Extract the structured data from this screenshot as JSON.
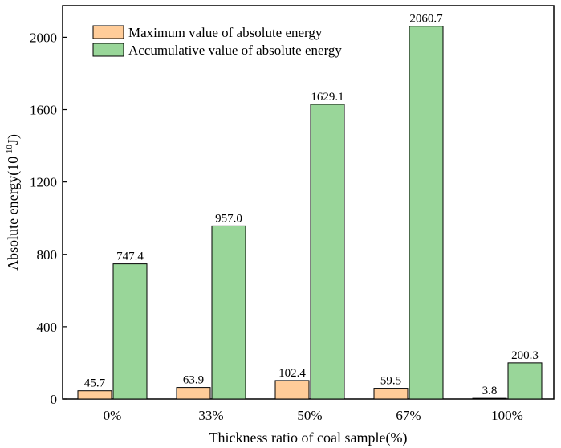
{
  "chart_data": {
    "type": "bar",
    "title": "",
    "xlabel": "Thickness ratio of coal sample(%)",
    "ylabel": {
      "main": "Absolute energy(10",
      "exponent": "-10",
      "unit": "J)"
    },
    "ylim": [
      0,
      2200
    ],
    "yticks": [
      0,
      400,
      800,
      1200,
      1600,
      2000
    ],
    "ytick_labels": [
      "0",
      "400",
      "800",
      "1200",
      "1600",
      "2000"
    ],
    "categories": [
      "0%",
      "33%",
      "50%",
      "67%",
      "100%"
    ],
    "series": [
      {
        "name": "Maximum value of absolute energy",
        "color": "#FFCC99",
        "values": [
          45.7,
          63.9,
          102.4,
          59.5,
          3.8
        ],
        "labels": [
          "45.7",
          "63.9",
          "102.4",
          "59.5",
          "3.8"
        ]
      },
      {
        "name": "Accumulative value of absolute energy",
        "color": "#99D699",
        "values": [
          747.4,
          957.0,
          1629.1,
          2060.7,
          200.3
        ],
        "labels": [
          "747.4",
          "957.0",
          "1629.1",
          "2060.7",
          "200.3"
        ]
      }
    ],
    "legend_position": "top-left",
    "grid": false
  }
}
